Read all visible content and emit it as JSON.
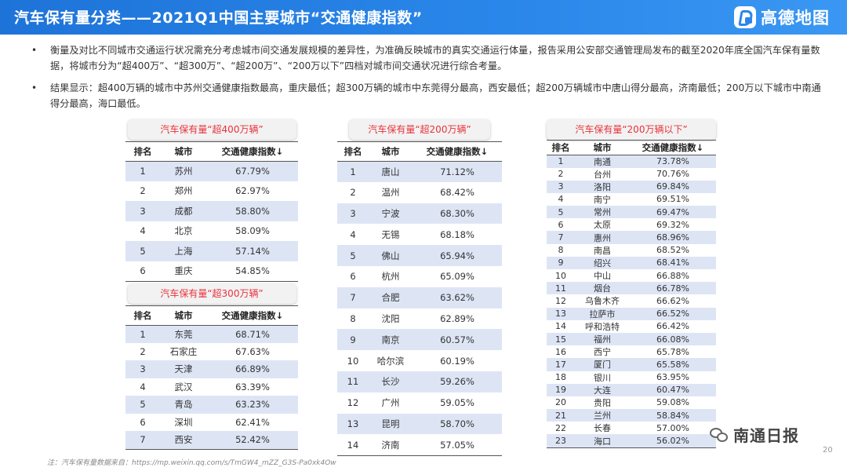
{
  "header": {
    "title": "汽车保有量分类——2021Q1中国主要城市“交通健康指数”",
    "brand": "高德地图",
    "brand_color": "#2a87ea"
  },
  "bullets": [
    "衡量及对比不同城市交通运行状况需充分考虑城市间交通发展规模的差异性，为准确反映城市的真实交通运行体量，报告采用公安部交通管理局发布的截至2020年底全国汽车保有量数据，将城市分为“超400万”、“超300万”、“超200万”、“200万以下”四档对城市间交通状况进行综合考量。",
    "结果显示：超400万辆的城市中苏州交通健康指数最高，重庆最低；超300万辆的城市中东莞得分最高，西安最低；超200万辆城市中唐山得分最高，济南最低；200万以下城市中南通得分最高，海口最低。"
  ],
  "columns": [
    "排名",
    "城市",
    "交通健康指数↓"
  ],
  "table_400": {
    "title": "汽车保有量“超400万辆”",
    "rows": [
      [
        "1",
        "苏州",
        "67.79%"
      ],
      [
        "2",
        "郑州",
        "62.97%"
      ],
      [
        "3",
        "成都",
        "58.80%"
      ],
      [
        "4",
        "北京",
        "58.09%"
      ],
      [
        "5",
        "上海",
        "57.14%"
      ],
      [
        "6",
        "重庆",
        "54.85%"
      ]
    ]
  },
  "table_300": {
    "title": "汽车保有量“超300万辆”",
    "rows": [
      [
        "1",
        "东莞",
        "68.71%"
      ],
      [
        "2",
        "石家庄",
        "67.63%"
      ],
      [
        "3",
        "天津",
        "66.89%"
      ],
      [
        "4",
        "武汉",
        "63.39%"
      ],
      [
        "5",
        "青岛",
        "63.23%"
      ],
      [
        "6",
        "深圳",
        "62.41%"
      ],
      [
        "7",
        "西安",
        "52.42%"
      ]
    ]
  },
  "table_200": {
    "title": "汽车保有量“超200万辆”",
    "rows": [
      [
        "1",
        "唐山",
        "71.12%"
      ],
      [
        "2",
        "温州",
        "68.42%"
      ],
      [
        "3",
        "宁波",
        "68.30%"
      ],
      [
        "4",
        "无锡",
        "68.18%"
      ],
      [
        "5",
        "佛山",
        "65.94%"
      ],
      [
        "6",
        "杭州",
        "65.09%"
      ],
      [
        "7",
        "合肥",
        "63.62%"
      ],
      [
        "8",
        "沈阳",
        "62.89%"
      ],
      [
        "9",
        "南京",
        "60.57%"
      ],
      [
        "10",
        "哈尔滨",
        "60.19%"
      ],
      [
        "11",
        "长沙",
        "59.26%"
      ],
      [
        "12",
        "广州",
        "59.05%"
      ],
      [
        "13",
        "昆明",
        "58.70%"
      ],
      [
        "14",
        "济南",
        "57.05%"
      ]
    ]
  },
  "table_below200": {
    "title": "汽车保有量“200万辆以下”",
    "rows": [
      [
        "1",
        "南通",
        "73.78%"
      ],
      [
        "2",
        "台州",
        "70.76%"
      ],
      [
        "3",
        "洛阳",
        "69.84%"
      ],
      [
        "4",
        "南宁",
        "69.51%"
      ],
      [
        "5",
        "常州",
        "69.47%"
      ],
      [
        "6",
        "太原",
        "69.32%"
      ],
      [
        "7",
        "惠州",
        "68.96%"
      ],
      [
        "8",
        "南昌",
        "68.52%"
      ],
      [
        "9",
        "绍兴",
        "68.41%"
      ],
      [
        "10",
        "中山",
        "66.88%"
      ],
      [
        "11",
        "烟台",
        "66.78%"
      ],
      [
        "12",
        "乌鲁木齐",
        "66.62%"
      ],
      [
        "13",
        "拉萨市",
        "66.52%"
      ],
      [
        "14",
        "呼和浩特",
        "66.42%"
      ],
      [
        "15",
        "福州",
        "66.08%"
      ],
      [
        "16",
        "西宁",
        "65.78%"
      ],
      [
        "17",
        "厦门",
        "65.58%"
      ],
      [
        "18",
        "银川",
        "63.95%"
      ],
      [
        "19",
        "大连",
        "60.47%"
      ],
      [
        "20",
        "贵阳",
        "59.08%"
      ],
      [
        "21",
        "兰州",
        "58.84%"
      ],
      [
        "22",
        "长春",
        "57.00%"
      ],
      [
        "23",
        "海口",
        "56.02%"
      ]
    ]
  },
  "footnote": "注：汽车保有量数据来自：https://mp.weixin.qq.com/s/TmGW4_mZZ_G3S-Pa0xk4Ow",
  "watermark": "南通日报",
  "page_number": "20"
}
